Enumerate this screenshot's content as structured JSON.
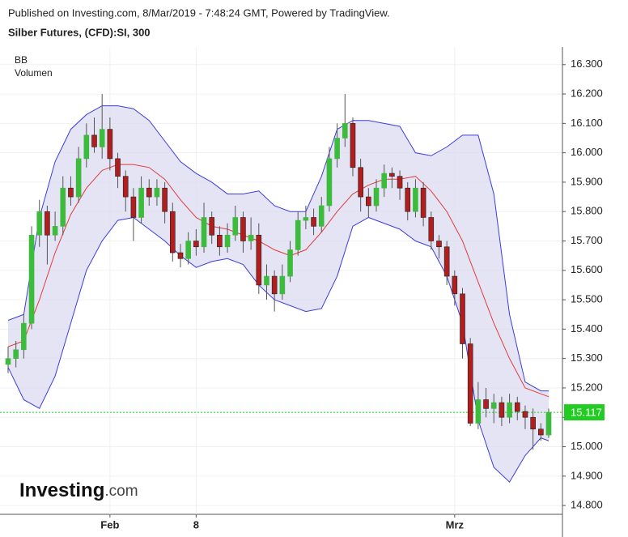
{
  "chart_data": {
    "type": "candlestick",
    "header": "Published on Investing.com, 8/Mar/2019 - 7:48:24 GMT, Powered by TradingView.",
    "title": "Silber Futures, (CFD):SI, 300",
    "legend": [
      "BB",
      "Volumen"
    ],
    "logo": {
      "brand": "Investing",
      "suffix": ".com"
    },
    "categories": [
      null,
      null,
      null,
      null,
      null,
      null,
      null,
      null,
      null,
      null,
      null,
      null,
      null,
      "Feb",
      null,
      null,
      null,
      null,
      null,
      null,
      null,
      null,
      null,
      null,
      "8",
      null,
      null,
      null,
      null,
      null,
      null,
      null,
      null,
      null,
      null,
      null,
      null,
      null,
      null,
      null,
      null,
      null,
      null,
      null,
      null,
      null,
      null,
      null,
      null,
      null,
      null,
      null,
      null,
      null,
      null,
      null,
      null,
      "Mrz",
      null,
      null,
      null,
      null,
      null,
      null,
      null,
      null,
      null,
      null,
      null,
      null
    ],
    "open": [
      15.28,
      15.3,
      15.33,
      15.42,
      15.72,
      15.8,
      15.72,
      15.75,
      15.88,
      15.85,
      15.98,
      16.06,
      16.02,
      16.08,
      15.98,
      15.92,
      15.85,
      15.78,
      15.88,
      15.85,
      15.88,
      15.8,
      15.66,
      15.64,
      15.7,
      15.68,
      15.78,
      15.72,
      15.68,
      15.72,
      15.78,
      15.7,
      15.72,
      15.55,
      15.58,
      15.52,
      15.58,
      15.67,
      15.77,
      15.78,
      15.75,
      15.82,
      15.98,
      16.05,
      16.1,
      15.95,
      15.85,
      15.82,
      15.88,
      15.93,
      15.92,
      15.88,
      15.8,
      15.88,
      15.78,
      15.7,
      15.68,
      15.58,
      15.52,
      15.35,
      15.08,
      15.16,
      15.13,
      15.15,
      15.1,
      15.15,
      15.12,
      15.1,
      15.06,
      15.04
    ],
    "high": [
      15.34,
      15.36,
      15.45,
      15.75,
      15.84,
      15.82,
      15.8,
      15.92,
      15.92,
      16.02,
      16.1,
      16.12,
      16.2,
      16.12,
      16.0,
      15.94,
      15.88,
      15.92,
      15.91,
      15.91,
      15.9,
      15.83,
      15.69,
      15.73,
      15.74,
      15.83,
      15.8,
      15.75,
      15.76,
      15.82,
      15.8,
      15.78,
      15.76,
      15.62,
      15.6,
      15.62,
      15.7,
      15.8,
      15.82,
      15.81,
      15.85,
      16.02,
      16.1,
      16.2,
      16.12,
      15.98,
      15.88,
      15.91,
      15.96,
      15.95,
      15.94,
      15.9,
      15.91,
      15.9,
      15.8,
      15.72,
      15.7,
      15.6,
      15.54,
      15.37,
      15.22,
      15.2,
      15.18,
      15.17,
      15.18,
      15.17,
      15.14,
      15.13,
      15.08,
      15.13
    ],
    "low": [
      15.25,
      15.27,
      15.3,
      15.4,
      15.68,
      15.62,
      15.7,
      15.72,
      15.82,
      15.83,
      15.95,
      16.0,
      15.98,
      15.94,
      15.88,
      15.8,
      15.7,
      15.76,
      15.82,
      15.82,
      15.76,
      15.63,
      15.61,
      15.62,
      15.65,
      15.66,
      15.69,
      15.65,
      15.66,
      15.7,
      15.66,
      15.67,
      15.52,
      15.5,
      15.46,
      15.5,
      15.56,
      15.65,
      15.74,
      15.72,
      15.73,
      15.8,
      15.95,
      16.02,
      15.92,
      15.8,
      15.78,
      15.8,
      15.85,
      15.88,
      15.84,
      15.77,
      15.78,
      15.75,
      15.67,
      15.64,
      15.55,
      15.48,
      15.3,
      15.07,
      15.06,
      15.1,
      15.08,
      15.07,
      15.08,
      15.09,
      15.06,
      14.99,
      15.02,
      15.03
    ],
    "close": [
      15.3,
      15.33,
      15.42,
      15.72,
      15.8,
      15.72,
      15.75,
      15.88,
      15.85,
      15.98,
      16.06,
      16.02,
      16.08,
      15.98,
      15.92,
      15.85,
      15.78,
      15.88,
      15.85,
      15.88,
      15.8,
      15.66,
      15.64,
      15.7,
      15.68,
      15.78,
      15.72,
      15.68,
      15.72,
      15.78,
      15.7,
      15.72,
      15.55,
      15.58,
      15.52,
      15.58,
      15.67,
      15.77,
      15.78,
      15.75,
      15.82,
      15.98,
      16.05,
      16.1,
      15.95,
      15.85,
      15.82,
      15.88,
      15.93,
      15.92,
      15.88,
      15.8,
      15.88,
      15.78,
      15.7,
      15.68,
      15.58,
      15.52,
      15.35,
      15.08,
      15.16,
      15.13,
      15.15,
      15.1,
      15.15,
      15.12,
      15.1,
      15.06,
      15.04,
      15.117
    ],
    "up_color": "#3dbb3d",
    "down_color": "#b01e1e",
    "bands": {
      "x": [
        0,
        2,
        4,
        6,
        8,
        10,
        12,
        14,
        16,
        18,
        20,
        22,
        24,
        26,
        28,
        30,
        32,
        34,
        36,
        38,
        40,
        42,
        44,
        46,
        48,
        50,
        52,
        54,
        56,
        58,
        60,
        62,
        64,
        66,
        68,
        69
      ],
      "upper": [
        15.43,
        15.45,
        15.78,
        15.97,
        16.08,
        16.13,
        16.16,
        16.16,
        16.15,
        16.11,
        16.04,
        15.97,
        15.93,
        15.9,
        15.86,
        15.86,
        15.87,
        15.82,
        15.8,
        15.8,
        15.92,
        16.08,
        16.11,
        16.11,
        16.1,
        16.09,
        16.0,
        15.99,
        16.02,
        16.06,
        16.06,
        15.86,
        15.45,
        15.22,
        15.19,
        15.19
      ],
      "middle": [
        15.34,
        15.36,
        15.5,
        15.66,
        15.79,
        15.88,
        15.94,
        15.96,
        15.96,
        15.95,
        15.91,
        15.84,
        15.78,
        15.75,
        15.74,
        15.72,
        15.7,
        15.67,
        15.65,
        15.67,
        15.73,
        15.8,
        15.86,
        15.89,
        15.91,
        15.91,
        15.92,
        15.87,
        15.8,
        15.7,
        15.56,
        15.42,
        15.3,
        15.2,
        15.18,
        15.17
      ],
      "lower": [
        15.27,
        15.16,
        15.13,
        15.24,
        15.42,
        15.6,
        15.7,
        15.77,
        15.78,
        15.74,
        15.7,
        15.65,
        15.61,
        15.63,
        15.64,
        15.62,
        15.55,
        15.5,
        15.48,
        15.46,
        15.47,
        15.58,
        15.75,
        15.78,
        15.76,
        15.74,
        15.7,
        15.68,
        15.58,
        15.42,
        15.09,
        14.93,
        14.88,
        14.97,
        15.03,
        15.02
      ],
      "band_color": "#3c3cdc",
      "middle_color": "#e03c3c",
      "fill_color": "#d8d8ef"
    },
    "last_price": 15.117,
    "last_price_color": "#22cc22",
    "ylim": [
      14.77,
      16.36
    ],
    "yticks": [
      {
        "value": 14.8,
        "label": "14.800"
      },
      {
        "value": 14.9,
        "label": "14.900"
      },
      {
        "value": 15.0,
        "label": "15.000"
      },
      {
        "value": 15.1,
        "label": "15.100"
      },
      {
        "value": 15.2,
        "label": "15.200"
      },
      {
        "value": 15.3,
        "label": "15.300"
      },
      {
        "value": 15.4,
        "label": "15.400"
      },
      {
        "value": 15.5,
        "label": "15.500"
      },
      {
        "value": 15.6,
        "label": "15.600"
      },
      {
        "value": 15.7,
        "label": "15.700"
      },
      {
        "value": 15.8,
        "label": "15.800"
      },
      {
        "value": 15.9,
        "label": "15.900"
      },
      {
        "value": 16.0,
        "label": "16.000"
      },
      {
        "value": 16.1,
        "label": "16.100"
      },
      {
        "value": 16.2,
        "label": "16.200"
      },
      {
        "value": 16.3,
        "label": "16.300"
      }
    ],
    "grid": true
  }
}
